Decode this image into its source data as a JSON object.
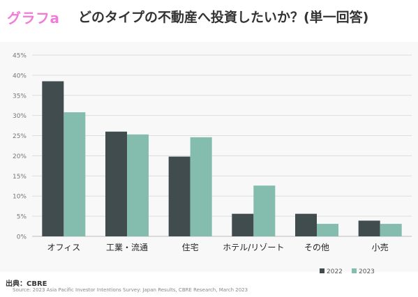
{
  "header": {
    "brand": "グラフa",
    "title": "どのタイプの不動産へ投資したいか？(単一回答)"
  },
  "footer": {
    "source_label": "出典：CBRE",
    "note": "Source: 2023 Asia Pacific Investor Intentions Survey: Japan Results, CBRE Research, March 2023"
  },
  "colors": {
    "brand": "#f07cd6",
    "series_2022": "#414c4f",
    "series_2023": "#84bcad"
  },
  "chart_data": {
    "type": "bar",
    "title": "",
    "xlabel": "",
    "ylabel": "",
    "ylim": [
      0,
      45
    ],
    "yticks": [
      "0%",
      "5%",
      "10%",
      "15%",
      "20%",
      "25%",
      "30%",
      "35%",
      "40%",
      "45%"
    ],
    "grid": true,
    "legend_position": "bottom-right",
    "categories": [
      "オフィス",
      "工業・流通",
      "住宅",
      "ホテル/リゾート",
      "その他",
      "小売"
    ],
    "series": [
      {
        "name": "2022",
        "values": [
          38.5,
          26.0,
          19.8,
          5.6,
          5.6,
          3.9
        ]
      },
      {
        "name": "2023",
        "values": [
          30.8,
          25.3,
          24.6,
          12.6,
          3.1,
          3.1
        ]
      }
    ]
  }
}
